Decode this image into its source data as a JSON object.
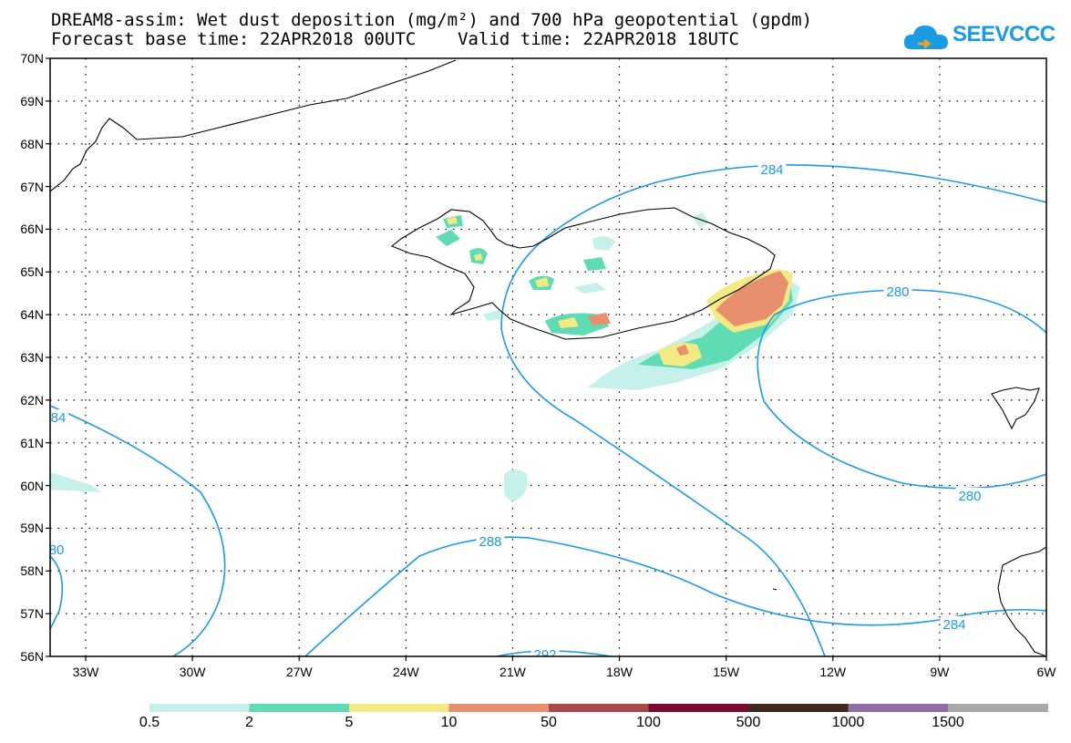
{
  "header": {
    "title_line1": "DREAM8-assim: Wet dust deposition (mg/m²) and 700 hPa geopotential (gpdm)",
    "title_line2": "Forecast base time: 22APR2018 00UTC    Valid time: 22APR2018 18UTC"
  },
  "logo": {
    "text": "SEEVCCC",
    "icon": "cloud-icon",
    "color": "#1a9be6"
  },
  "map": {
    "lat_labels": [
      "70N",
      "69N",
      "68N",
      "67N",
      "66N",
      "65N",
      "64N",
      "63N",
      "62N",
      "61N",
      "60N",
      "59N",
      "58N",
      "57N",
      "56N"
    ],
    "lon_labels": [
      "33W",
      "30W",
      "27W",
      "24W",
      "21W",
      "18W",
      "15W",
      "12W",
      "9W",
      "6W"
    ],
    "contour_color": "#1a9be6",
    "contour_labels": [
      "284",
      "280",
      "280",
      "284",
      "84",
      "80",
      "288",
      "292"
    ]
  },
  "colorbar": {
    "colors": [
      "#c6f1ea",
      "#5fdcb4",
      "#f3ea83",
      "#e88f6e",
      "#a9484a",
      "#7a0a2e",
      "#3b2a1c",
      "#8f6fa3",
      "#a8a8a8"
    ],
    "labels": [
      "0.5",
      "2",
      "5",
      "10",
      "50",
      "100",
      "500",
      "1000",
      "1500"
    ]
  }
}
